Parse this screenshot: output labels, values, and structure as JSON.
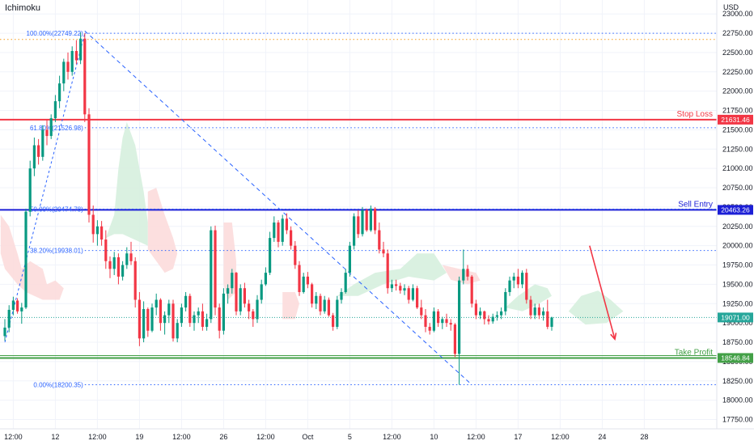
{
  "app": {
    "indicator_title": "Ichimoku",
    "currency": "USD"
  },
  "chart_data": {
    "type": "candlestick",
    "y_axis": {
      "range": [
        17630,
        23180
      ],
      "ticks": [
        17750,
        18000,
        18250,
        18500,
        18750,
        19000,
        19250,
        19500,
        19750,
        20000,
        20250,
        20500,
        20750,
        21000,
        21250,
        21500,
        21750,
        22000,
        22250,
        22500,
        22750,
        23000
      ],
      "tick_labels": [
        "17750.00",
        "18000.00",
        "18250.00",
        "18500.00",
        "18750.00",
        "19000.00",
        "19250.00",
        "19500.00",
        "19750.00",
        "20000.00",
        "20250.00",
        "20500.00",
        "20750.00",
        "21000.00",
        "21250.00",
        "21500.00",
        "21750.00",
        "22000.00",
        "22250.00",
        "22500.00",
        "22750.00",
        "23000.00"
      ]
    },
    "x_axis": {
      "ticks": [
        {
          "bar": 2,
          "label": "12:00"
        },
        {
          "bar": 12,
          "label": "12"
        },
        {
          "bar": 22,
          "label": "12:00"
        },
        {
          "bar": 32,
          "label": "19"
        },
        {
          "bar": 42,
          "label": "12:00"
        },
        {
          "bar": 52,
          "label": "26"
        },
        {
          "bar": 62,
          "label": "12:00"
        },
        {
          "bar": 72,
          "label": "Oct"
        },
        {
          "bar": 82,
          "label": "5"
        },
        {
          "bar": 92,
          "label": "12:00"
        },
        {
          "bar": 102,
          "label": "10"
        },
        {
          "bar": 112,
          "label": "12:00"
        },
        {
          "bar": 122,
          "label": "17"
        },
        {
          "bar": 132,
          "label": "12:00"
        },
        {
          "bar": 142,
          "label": "24"
        },
        {
          "bar": 152,
          "label": "28"
        }
      ]
    },
    "levels": {
      "stop_loss": {
        "label": "Stop Loss",
        "price": 21631.46,
        "price_label": "21631.46",
        "color": "#f23645"
      },
      "sell_entry": {
        "label": "Sell Entry",
        "price": 20463.26,
        "price_label": "20463.26",
        "color": "#1c1fd6"
      },
      "take_profit": {
        "label": "Take Profit",
        "price": 18546.84,
        "price_label": "18546.84",
        "color": "#43a047"
      },
      "last_price": {
        "price": 19071.0,
        "price_label": "19071.00",
        "color": "#26a69a"
      },
      "orange_level": {
        "price": 22670,
        "color": "#f59b1a"
      }
    },
    "fibonacci": [
      {
        "label": "100.00%(22749.22)",
        "price": 22749.22
      },
      {
        "label": "61.80%(21526.98)",
        "price": 21526.98
      },
      {
        "label": "50.00%(20474.78)",
        "price": 20474.78
      },
      {
        "label": "38.20%(19938.01)",
        "price": 19938.01
      },
      {
        "label": "0.00%(18200.35)",
        "price": 18200.35
      }
    ],
    "trendline": [
      {
        "bar": 19,
        "price": 22780
      },
      {
        "bar": 111,
        "price": 18200
      }
    ],
    "arrow": {
      "from": {
        "bar": 139,
        "price": 20000
      },
      "to": {
        "bar": 145,
        "price": 18790
      },
      "color": "#f23645"
    },
    "candles": [
      [
        18830,
        19050,
        18770,
        18940
      ],
      [
        18940,
        19230,
        18880,
        19170
      ],
      [
        19170,
        19340,
        19100,
        19290
      ],
      [
        19290,
        19320,
        19120,
        19150
      ],
      [
        19150,
        19260,
        18990,
        19200
      ],
      [
        19200,
        20480,
        19180,
        20440
      ],
      [
        20440,
        21100,
        20380,
        21000
      ],
      [
        21000,
        21400,
        20900,
        21300
      ],
      [
        21300,
        21380,
        21050,
        21150
      ],
      [
        21150,
        21560,
        21100,
        21500
      ],
      [
        21500,
        21640,
        21300,
        21420
      ],
      [
        21420,
        21700,
        21380,
        21650
      ],
      [
        21650,
        21950,
        21600,
        21870
      ],
      [
        21870,
        22200,
        21780,
        22100
      ],
      [
        22100,
        22420,
        22000,
        22380
      ],
      [
        22380,
        22500,
        22150,
        22250
      ],
      [
        22250,
        22580,
        22200,
        22520
      ],
      [
        22520,
        22660,
        22350,
        22400
      ],
      [
        22400,
        22760,
        22350,
        22680
      ],
      [
        22680,
        22749,
        21600,
        21700
      ],
      [
        21700,
        21780,
        20300,
        20400
      ],
      [
        20400,
        20520,
        20040,
        20150
      ],
      [
        20150,
        20330,
        20000,
        20250
      ],
      [
        20250,
        20320,
        20000,
        20080
      ],
      [
        20080,
        20200,
        19700,
        19800
      ],
      [
        19800,
        19860,
        19580,
        19700
      ],
      [
        19700,
        19920,
        19620,
        19850
      ],
      [
        19850,
        19900,
        19500,
        19600
      ],
      [
        19600,
        19800,
        19550,
        19750
      ],
      [
        19750,
        19980,
        19700,
        19900
      ],
      [
        19900,
        20050,
        19750,
        19800
      ],
      [
        19800,
        19850,
        19200,
        19300
      ],
      [
        19300,
        19400,
        18700,
        18800
      ],
      [
        18800,
        19280,
        18750,
        19180
      ],
      [
        19180,
        19200,
        18820,
        18900
      ],
      [
        18900,
        19250,
        18880,
        19200
      ],
      [
        19200,
        19380,
        19100,
        19300
      ],
      [
        19300,
        19320,
        18900,
        19000
      ],
      [
        19000,
        19150,
        18850,
        19100
      ],
      [
        19100,
        19300,
        19000,
        19250
      ],
      [
        19250,
        19300,
        18760,
        18800
      ],
      [
        18800,
        19050,
        18750,
        19000
      ],
      [
        19000,
        19250,
        18950,
        19200
      ],
      [
        19200,
        19400,
        19150,
        19350
      ],
      [
        19350,
        19380,
        18950,
        19000
      ],
      [
        19000,
        19150,
        18900,
        19100
      ],
      [
        19100,
        19200,
        19000,
        19150
      ],
      [
        19150,
        19250,
        18900,
        18950
      ],
      [
        18950,
        19120,
        18900,
        19050
      ],
      [
        19050,
        20250,
        19000,
        20200
      ],
      [
        20200,
        20260,
        19100,
        19200
      ],
      [
        19200,
        19250,
        18800,
        18900
      ],
      [
        18900,
        19450,
        18850,
        19380
      ],
      [
        19380,
        19500,
        19250,
        19450
      ],
      [
        19450,
        19700,
        19380,
        19650
      ],
      [
        19650,
        19660,
        19100,
        19150
      ],
      [
        19150,
        19500,
        19100,
        19450
      ],
      [
        19450,
        19520,
        19200,
        19250
      ],
      [
        19250,
        19300,
        19050,
        19150
      ],
      [
        19150,
        19180,
        18950,
        19050
      ],
      [
        19050,
        19360,
        19000,
        19300
      ],
      [
        19300,
        19560,
        19250,
        19500
      ],
      [
        19500,
        19720,
        19480,
        19650
      ],
      [
        19650,
        20180,
        19620,
        20100
      ],
      [
        20100,
        20380,
        20050,
        20300
      ],
      [
        20300,
        20330,
        19980,
        20050
      ],
      [
        20050,
        20400,
        20000,
        20350
      ],
      [
        20350,
        20420,
        20150,
        20200
      ],
      [
        20200,
        20250,
        19950,
        20000
      ],
      [
        20000,
        20060,
        19700,
        19750
      ],
      [
        19750,
        19800,
        19350,
        19400
      ],
      [
        19400,
        19650,
        19380,
        19600
      ],
      [
        19600,
        19660,
        19450,
        19500
      ],
      [
        19500,
        19520,
        19200,
        19250
      ],
      [
        19250,
        19400,
        19180,
        19350
      ],
      [
        19350,
        19380,
        19100,
        19150
      ],
      [
        19150,
        19350,
        19120,
        19300
      ],
      [
        19300,
        19330,
        19080,
        19100
      ],
      [
        19100,
        19130,
        18900,
        18950
      ],
      [
        18950,
        19350,
        18920,
        19300
      ],
      [
        19300,
        19450,
        19250,
        19400
      ],
      [
        19400,
        19700,
        19380,
        19650
      ],
      [
        19650,
        20050,
        19600,
        20000
      ],
      [
        20000,
        20420,
        19950,
        20380
      ],
      [
        20380,
        20460,
        20100,
        20150
      ],
      [
        20150,
        20500,
        20120,
        20460
      ],
      [
        20460,
        20480,
        20180,
        20200
      ],
      [
        20200,
        20520,
        20180,
        20480
      ],
      [
        20480,
        20500,
        20150,
        20200
      ],
      [
        20200,
        20300,
        19900,
        19950
      ],
      [
        19950,
        20050,
        19850,
        19900
      ],
      [
        19900,
        19950,
        19380,
        19450
      ],
      [
        19450,
        19560,
        19400,
        19500
      ],
      [
        19500,
        19560,
        19420,
        19480
      ],
      [
        19480,
        19520,
        19380,
        19420
      ],
      [
        19420,
        19500,
        19360,
        19450
      ],
      [
        19450,
        19480,
        19250,
        19300
      ],
      [
        19300,
        19500,
        19280,
        19450
      ],
      [
        19450,
        19480,
        19180,
        19200
      ],
      [
        19200,
        19300,
        19050,
        19100
      ],
      [
        19100,
        19180,
        18880,
        18950
      ],
      [
        18950,
        19000,
        18850,
        18900
      ],
      [
        18900,
        19200,
        18880,
        19150
      ],
      [
        19150,
        19180,
        18950,
        19000
      ],
      [
        19000,
        19080,
        18920,
        19050
      ],
      [
        19050,
        19120,
        18950,
        19000
      ],
      [
        19000,
        19050,
        18900,
        18980
      ],
      [
        18980,
        19000,
        18560,
        18600
      ],
      [
        18600,
        19600,
        18200,
        19550
      ],
      [
        19550,
        19950,
        19500,
        19700
      ],
      [
        19700,
        19750,
        19550,
        19600
      ],
      [
        19600,
        19620,
        19200,
        19250
      ],
      [
        19250,
        19300,
        19050,
        19100
      ],
      [
        19100,
        19200,
        19050,
        19150
      ],
      [
        19150,
        19160,
        18980,
        19050
      ],
      [
        19050,
        19100,
        18980,
        19020
      ],
      [
        19020,
        19120,
        18990,
        19080
      ],
      [
        19080,
        19150,
        19030,
        19100
      ],
      [
        19100,
        19200,
        19050,
        19150
      ],
      [
        19150,
        19450,
        19100,
        19400
      ],
      [
        19400,
        19600,
        19350,
        19550
      ],
      [
        19550,
        19650,
        19450,
        19600
      ],
      [
        19600,
        19700,
        19450,
        19500
      ],
      [
        19500,
        19680,
        19450,
        19650
      ],
      [
        19650,
        19700,
        19250,
        19300
      ],
      [
        19300,
        19350,
        19050,
        19100
      ],
      [
        19100,
        19250,
        19050,
        19200
      ],
      [
        19200,
        19250,
        19050,
        19100
      ],
      [
        19100,
        19200,
        19030,
        19150
      ],
      [
        19150,
        19300,
        18920,
        18950
      ],
      [
        18950,
        19080,
        18900,
        19071
      ]
    ],
    "cloud_shapes": [
      {
        "color": "#fcdcdc",
        "points": [
          [
            -1,
            20400
          ],
          [
            1,
            20250
          ],
          [
            3,
            19900
          ],
          [
            4,
            19700
          ],
          [
            6,
            19800
          ],
          [
            9,
            19700
          ],
          [
            10,
            19500
          ],
          [
            12,
            19550
          ],
          [
            14,
            19450
          ],
          [
            13,
            19300
          ],
          [
            9,
            19300
          ],
          [
            5,
            19400
          ],
          [
            3,
            19500
          ],
          [
            0,
            19700
          ],
          [
            -1,
            19900
          ]
        ]
      },
      {
        "color": "#d6efde",
        "points": [
          [
            24,
            20100
          ],
          [
            26,
            20400
          ],
          [
            27,
            21000
          ],
          [
            28,
            21400
          ],
          [
            29,
            21600
          ],
          [
            31,
            21300
          ],
          [
            33,
            20700
          ],
          [
            34,
            20300
          ],
          [
            34,
            20000
          ],
          [
            32,
            20050
          ],
          [
            30,
            20100
          ],
          [
            28,
            20150
          ],
          [
            26,
            20150
          ]
        ]
      },
      {
        "color": "#fcdcdc",
        "points": [
          [
            34,
            20700
          ],
          [
            36,
            20750
          ],
          [
            38,
            20400
          ],
          [
            40,
            20100
          ],
          [
            41,
            19900
          ],
          [
            40,
            19700
          ],
          [
            38,
            19650
          ],
          [
            36,
            19800
          ],
          [
            34,
            19950
          ]
        ]
      },
      {
        "color": "#fcdcdc",
        "points": [
          [
            52,
            20300
          ],
          [
            54,
            20300
          ],
          [
            55,
            19800
          ],
          [
            55,
            19400
          ],
          [
            53,
            19300
          ],
          [
            52,
            19500
          ]
        ]
      },
      {
        "color": "#fcdcdc",
        "points": [
          [
            66,
            19400
          ],
          [
            69,
            19400
          ],
          [
            70,
            19250
          ],
          [
            69,
            19050
          ],
          [
            66,
            19050
          ]
        ]
      },
      {
        "color": "#d6efde",
        "points": [
          [
            79,
            19350
          ],
          [
            83,
            19500
          ],
          [
            88,
            19650
          ],
          [
            94,
            19700
          ],
          [
            98,
            19900
          ],
          [
            102,
            19900
          ],
          [
            105,
            19650
          ],
          [
            102,
            19550
          ],
          [
            96,
            19600
          ],
          [
            90,
            19500
          ],
          [
            84,
            19350
          ]
        ]
      },
      {
        "color": "#fcdcdc",
        "points": [
          [
            104,
            19750
          ],
          [
            108,
            19700
          ],
          [
            112,
            19650
          ],
          [
            113,
            19550
          ],
          [
            110,
            19500
          ],
          [
            106,
            19560
          ]
        ]
      },
      {
        "color": "#d6efde",
        "points": [
          [
            119,
            19200
          ],
          [
            122,
            19350
          ],
          [
            126,
            19500
          ],
          [
            129,
            19450
          ],
          [
            130,
            19350
          ],
          [
            127,
            19250
          ],
          [
            123,
            19150
          ]
        ]
      },
      {
        "color": "#d6efde",
        "points": [
          [
            134,
            19150
          ],
          [
            137,
            19350
          ],
          [
            141,
            19420
          ],
          [
            144,
            19300
          ],
          [
            147,
            19150
          ],
          [
            143,
            19000
          ],
          [
            138,
            18980
          ]
        ]
      }
    ]
  }
}
